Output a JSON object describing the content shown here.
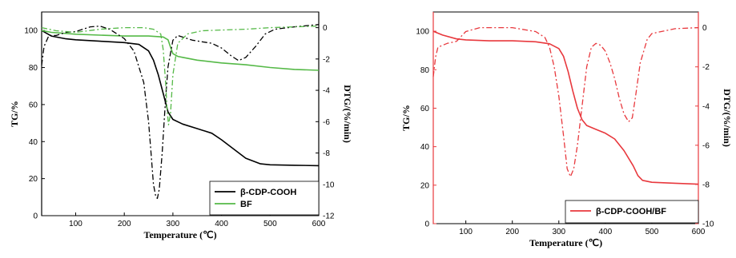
{
  "chart_data": [
    {
      "type": "line",
      "xlabel": "Temperature (℃)",
      "ylabel_left": "TG/%",
      "ylabel_right": "DTG/(%/min)",
      "xlim": [
        30,
        600
      ],
      "ylim_left": [
        0,
        110
      ],
      "ylim_right": [
        -12,
        1
      ],
      "x_ticks": [
        100,
        200,
        300,
        400,
        500,
        600
      ],
      "y_left_ticks": [
        0,
        20,
        40,
        60,
        80,
        100
      ],
      "y_right_ticks": [
        0,
        -2,
        -4,
        -6,
        -8,
        -10,
        -12
      ],
      "legend_position": "bottom-right",
      "series": [
        {
          "name": "β-CDP-COOH",
          "axis": "left",
          "style": "solid",
          "color": "#000000",
          "x": [
            30,
            50,
            80,
            100,
            150,
            200,
            230,
            250,
            260,
            270,
            280,
            290,
            300,
            320,
            350,
            380,
            400,
            420,
            450,
            480,
            500,
            550,
            600
          ],
          "y": [
            100,
            97,
            95.5,
            95,
            94.2,
            93.5,
            92.5,
            89,
            84,
            76,
            66,
            56,
            52,
            49.5,
            47,
            44.5,
            41,
            37,
            31,
            28,
            27.5,
            27.2,
            27
          ]
        },
        {
          "name": "BF",
          "axis": "left",
          "style": "solid",
          "color": "#55b947",
          "x": [
            30,
            50,
            100,
            150,
            200,
            250,
            280,
            290,
            295,
            300,
            310,
            320,
            350,
            400,
            450,
            500,
            550,
            600
          ],
          "y": [
            100,
            99,
            98,
            97.5,
            97,
            97,
            96.5,
            95,
            91,
            87.5,
            86,
            85.5,
            84,
            82.5,
            81.5,
            80,
            79,
            78.5
          ]
        },
        {
          "name": "",
          "axis": "right",
          "style": "dashdot",
          "color": "#000000",
          "x": [
            30,
            35,
            45,
            60,
            80,
            100,
            130,
            150,
            170,
            200,
            220,
            240,
            250,
            255,
            260,
            265,
            268,
            272,
            278,
            285,
            290,
            300,
            310,
            320,
            340,
            360,
            380,
            400,
            420,
            435,
            450,
            470,
            490,
            510,
            550,
            600
          ],
          "y": [
            -2.4,
            -1.2,
            -0.5,
            -0.5,
            -0.3,
            -0.25,
            0.05,
            0.1,
            -0.1,
            -0.7,
            -1.5,
            -3.5,
            -6,
            -8,
            -10,
            -10.8,
            -10.9,
            -10.3,
            -8,
            -4.5,
            -2.5,
            -0.8,
            -0.5,
            -0.6,
            -0.8,
            -0.9,
            -1,
            -1.3,
            -1.8,
            -2.1,
            -1.9,
            -1.2,
            -0.4,
            -0.1,
            0.05,
            0.2
          ]
        },
        {
          "name": "",
          "axis": "right",
          "style": "dashdot",
          "color": "#55b947",
          "x": [
            30,
            60,
            100,
            150,
            200,
            240,
            260,
            275,
            280,
            285,
            288,
            291,
            295,
            300,
            310,
            330,
            360,
            400,
            450,
            500,
            550,
            600
          ],
          "y": [
            0,
            -0.2,
            -0.3,
            -0.1,
            0,
            0,
            -0.1,
            -0.4,
            -1.4,
            -3.5,
            -5.2,
            -6.2,
            -5.5,
            -3,
            -1,
            -0.4,
            -0.2,
            -0.15,
            -0.1,
            0,
            0.05,
            0.1
          ]
        }
      ]
    },
    {
      "type": "line",
      "xlabel": "Temperature (℃)",
      "ylabel_left": "TG/%",
      "ylabel_right": "DTG/(%/min)",
      "xlim": [
        30,
        600
      ],
      "ylim_left": [
        0,
        110
      ],
      "ylim_right": [
        -10,
        0.8
      ],
      "x_ticks": [
        100,
        200,
        300,
        400,
        500,
        600
      ],
      "y_left_ticks": [
        0,
        20,
        40,
        60,
        80,
        100
      ],
      "y_right_ticks": [
        0,
        -2,
        -4,
        -6,
        -8,
        -10
      ],
      "legend_position": "bottom-right",
      "series": [
        {
          "name": "β-CDP-COOH/BF",
          "axis": "left",
          "style": "solid",
          "color": "#e8383d",
          "x": [
            30,
            50,
            80,
            100,
            150,
            200,
            250,
            280,
            300,
            310,
            320,
            330,
            340,
            350,
            360,
            380,
            400,
            420,
            440,
            460,
            470,
            480,
            500,
            550,
            600
          ],
          "y": [
            100,
            98,
            96,
            95.5,
            95,
            95,
            94.5,
            93.5,
            91,
            87,
            79,
            69,
            60,
            54,
            51,
            49,
            47,
            44,
            38,
            30,
            25,
            22.5,
            21.5,
            21,
            20.5
          ]
        },
        {
          "name": "",
          "axis": "right",
          "style": "dashdot",
          "color": "#e8383d",
          "x": [
            30,
            35,
            40,
            50,
            60,
            80,
            100,
            130,
            150,
            200,
            250,
            270,
            280,
            290,
            300,
            310,
            318,
            325,
            332,
            340,
            350,
            360,
            370,
            380,
            390,
            400,
            410,
            420,
            430,
            440,
            450,
            458,
            465,
            475,
            490,
            500,
            550,
            600
          ],
          "y": [
            -2.5,
            -1.5,
            -1,
            -0.9,
            -0.8,
            -0.7,
            -0.2,
            0,
            0,
            0,
            -0.2,
            -0.5,
            -1,
            -2,
            -3.5,
            -5.5,
            -7.2,
            -7.6,
            -7.2,
            -6,
            -4,
            -2,
            -1,
            -0.8,
            -0.9,
            -1.2,
            -1.8,
            -2.6,
            -3.6,
            -4.4,
            -4.8,
            -4.6,
            -3.5,
            -1.8,
            -0.6,
            -0.3,
            -0.05,
            0
          ]
        }
      ]
    }
  ]
}
